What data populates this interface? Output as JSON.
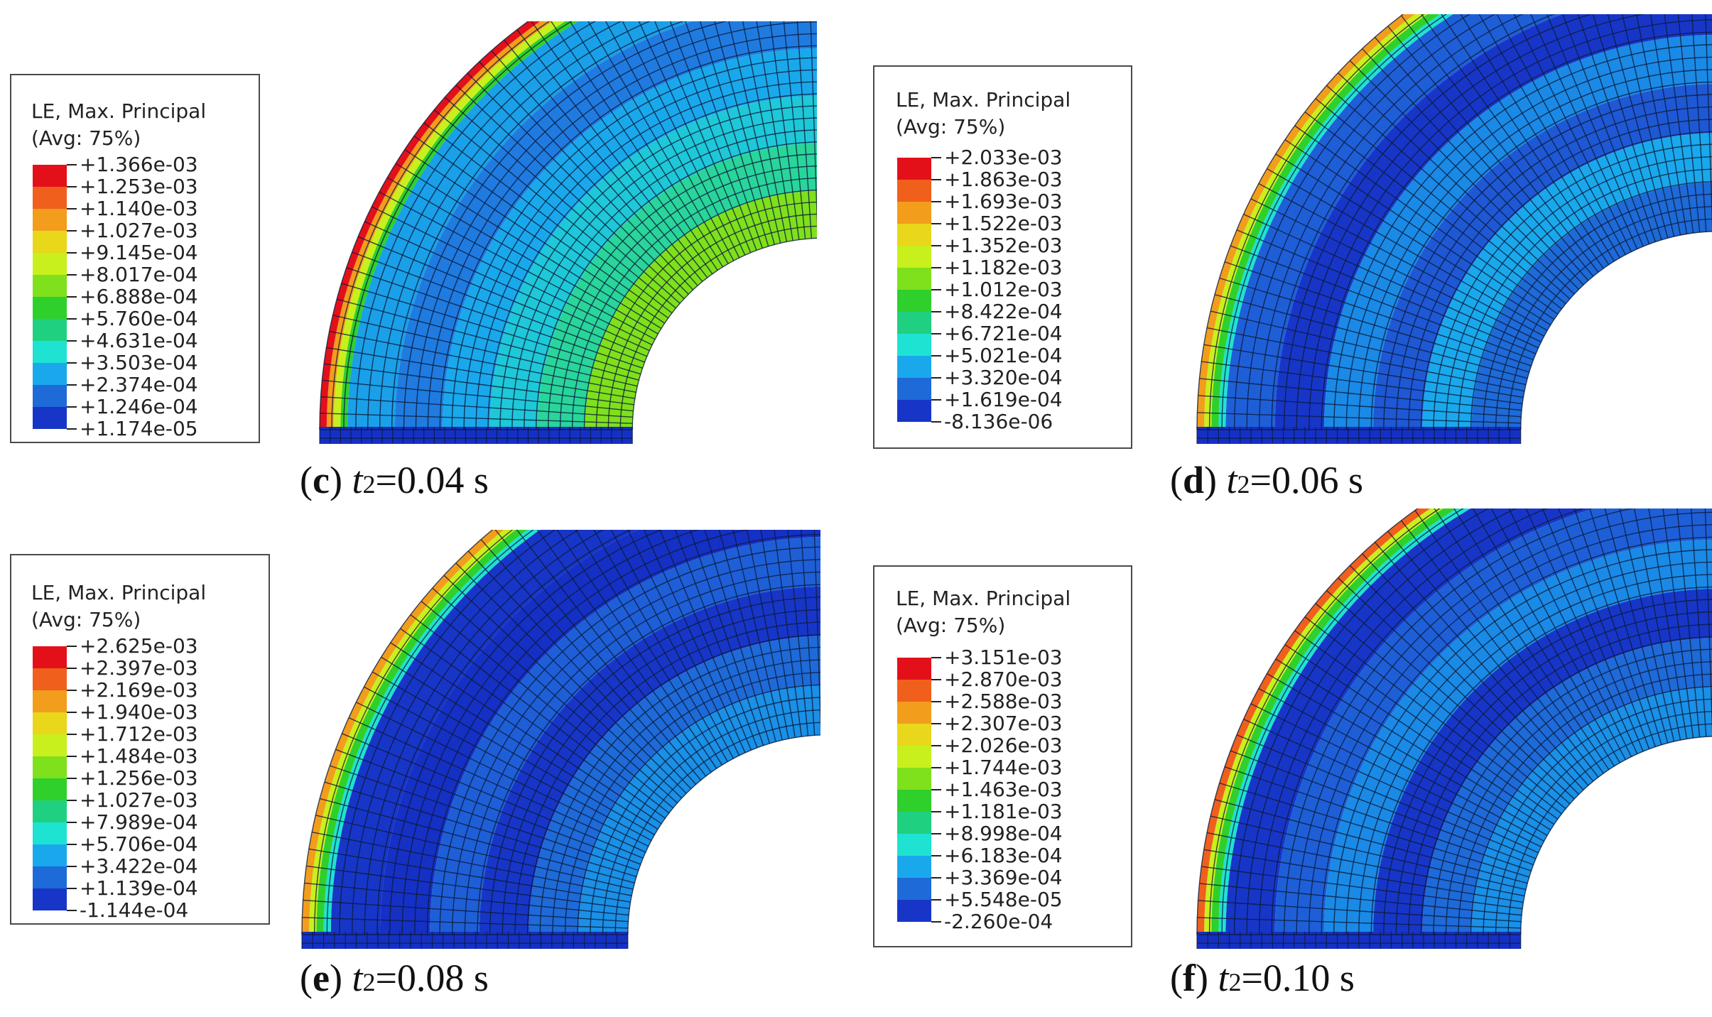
{
  "panels": [
    {
      "id": "c",
      "legend_title_1": "LE, Max. Principal",
      "legend_title_2": "(Avg: 75%)",
      "values": [
        "+1.366e-03",
        "+1.253e-03",
        "+1.140e-03",
        "+1.027e-03",
        "+9.145e-04",
        "+8.017e-04",
        "+6.888e-04",
        "+5.760e-04",
        "+4.631e-04",
        "+3.503e-04",
        "+2.374e-04",
        "+1.246e-04",
        "+1.174e-05"
      ],
      "caption_letter": "c",
      "caption_var": "t",
      "caption_sub": "2",
      "caption_value": "=0.04 s"
    },
    {
      "id": "d",
      "legend_title_1": "LE, Max. Principal",
      "legend_title_2": "(Avg: 75%)",
      "values": [
        "+2.033e-03",
        "+1.863e-03",
        "+1.693e-03",
        "+1.522e-03",
        "+1.352e-03",
        "+1.182e-03",
        "+1.012e-03",
        "+8.422e-04",
        "+6.721e-04",
        "+5.021e-04",
        "+3.320e-04",
        "+1.619e-04",
        "-8.136e-06"
      ],
      "caption_letter": "d",
      "caption_var": "t",
      "caption_sub": "2",
      "caption_value": "=0.06 s"
    },
    {
      "id": "e",
      "legend_title_1": "LE, Max. Principal",
      "legend_title_2": "(Avg: 75%)",
      "values": [
        "+2.625e-03",
        "+2.397e-03",
        "+2.169e-03",
        "+1.940e-03",
        "+1.712e-03",
        "+1.484e-03",
        "+1.256e-03",
        "+1.027e-03",
        "+7.989e-04",
        "+5.706e-04",
        "+3.422e-04",
        "+1.139e-04",
        "-1.144e-04"
      ],
      "caption_letter": "e",
      "caption_var": "t",
      "caption_sub": "2",
      "caption_value": "=0.08 s"
    },
    {
      "id": "f",
      "legend_title_1": "LE, Max. Principal",
      "legend_title_2": "(Avg: 75%)",
      "values": [
        "+3.151e-03",
        "+2.870e-03",
        "+2.588e-03",
        "+2.307e-03",
        "+2.026e-03",
        "+1.744e-03",
        "+1.463e-03",
        "+1.181e-03",
        "+8.998e-04",
        "+6.183e-04",
        "+3.369e-04",
        "+5.548e-05",
        "-2.260e-04"
      ],
      "caption_letter": "f",
      "caption_var": "t",
      "caption_sub": "2",
      "caption_value": "=0.10 s"
    }
  ],
  "colormap": [
    "#e3101a",
    "#f0601c",
    "#f29d1c",
    "#e8d71a",
    "#c8f01c",
    "#7fe01c",
    "#2fd02c",
    "#1fd080",
    "#1ee2d2",
    "#1aa8ec",
    "#1e6ad8",
    "#1736c8",
    "#0b12e0"
  ]
}
